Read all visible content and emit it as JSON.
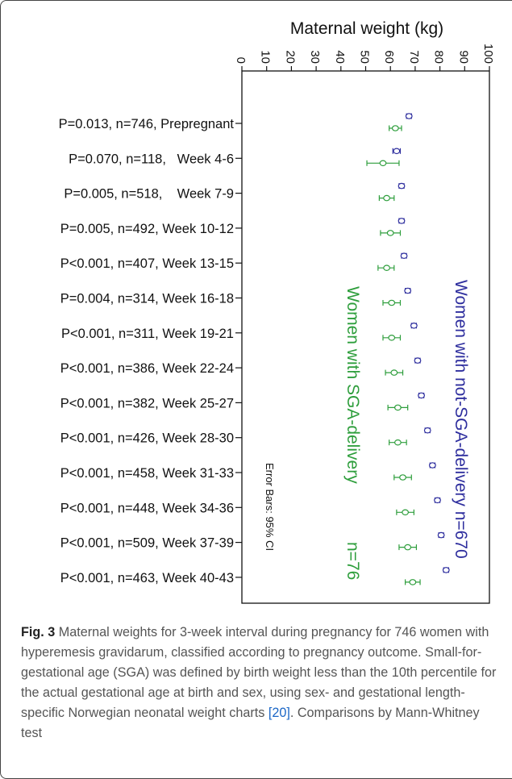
{
  "chart_data": {
    "type": "scatter",
    "title": "",
    "xlabel": "Maternal weight (kg)",
    "ylabel": "",
    "xlim": [
      0,
      100
    ],
    "x_ticks": [
      "0",
      "10",
      "20",
      "30",
      "40",
      "50",
      "60",
      "70",
      "80",
      "90",
      "100"
    ],
    "categories": [
      "P=0.013, n=746, Prepregnant",
      "P=0.070, n=118,   Week 4-6",
      "P=0.005, n=518,    Week 7-9",
      "P=0.005, n=492, Week 10-12",
      "P<0.001, n=407, Week 13-15",
      "P=0.004, n=314, Week 16-18",
      "P<0.001, n=311, Week 19-21",
      "P<0.001, n=386, Week 22-24",
      "P<0.001, n=382, Week 25-27",
      "P<0.001, n=426, Week 28-30",
      "P<0.001, n=458, Week 31-33",
      "P<0.001, n=448, Week 34-36",
      "P<0.001, n=509, Week 37-39",
      "P<0.001, n=463, Week 40-43"
    ],
    "series": [
      {
        "name": "Women with not-SGA-delivery n=670",
        "color": "#2e2e9e",
        "values": [
          67.5,
          62.5,
          64.5,
          64.5,
          65.5,
          67,
          69.5,
          71,
          72.5,
          75,
          77,
          79,
          80.5,
          82.5
        ],
        "ci_low": [
          66.5,
          61,
          63.5,
          63.5,
          64.5,
          66,
          68.5,
          70,
          71.5,
          74,
          76,
          78,
          79.5,
          81.5
        ],
        "ci_high": [
          68.5,
          64,
          65.5,
          65.5,
          66.5,
          68,
          70.5,
          72,
          73.5,
          76,
          78,
          80,
          81.5,
          83.5
        ]
      },
      {
        "name": "Women with SGA-delivery n=76",
        "color": "#2e9e3c",
        "values": [
          62,
          57,
          58.5,
          60,
          58.5,
          60.5,
          60.5,
          61.5,
          63,
          63,
          65,
          66,
          67,
          69
        ],
        "ci_low": [
          59.5,
          50.5,
          55.5,
          56,
          55,
          57,
          57,
          58,
          59,
          59.5,
          61.5,
          62.5,
          63.5,
          66
        ],
        "ci_high": [
          64.5,
          63.5,
          61.5,
          64,
          61.5,
          64,
          64,
          65,
          67,
          66.5,
          68.5,
          69.5,
          70.5,
          72
        ]
      }
    ],
    "annotations": {
      "error_bars": "Error Bars: 95% CI",
      "sga_label": "Women with SGA-delivery",
      "sga_n": "n=76",
      "notsga_label": "Women with not-SGA-delivery n=670"
    }
  },
  "caption": {
    "fig_label": "Fig. 3",
    "text_before_ref": " Maternal weights for 3-week interval during pregnancy for 746 women with hyperemesis gravidarum, classified according to pregnancy outcome. Small-for-gestational age (SGA) was defined by birth weight less than the 10th percentile for the actual gestational age at birth and sex, using sex- and gestational length-specific Norwegian neonatal weight charts ",
    "ref": "[20]",
    "text_after_ref": ". Comparisons by Mann-Whitney test"
  }
}
